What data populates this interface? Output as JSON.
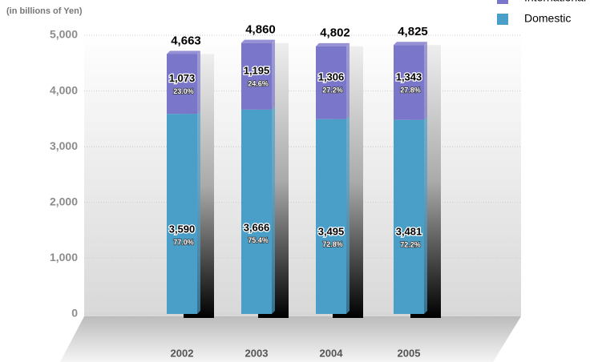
{
  "chart_data": {
    "type": "stacked-bar",
    "y_label": "(in billions of Yen)",
    "categories": [
      "2002",
      "2003",
      "2004",
      "2005"
    ],
    "series": [
      {
        "name": "Domestic",
        "color": "#4a9fc8",
        "values": [
          3590,
          3666,
          3495,
          3481
        ],
        "value_labels": [
          "3,590",
          "3,666",
          "3,495",
          "3,481"
        ],
        "shares": [
          "77.0%",
          "75.4%",
          "72.8%",
          "72.2%"
        ]
      },
      {
        "name": "International",
        "color": "#7a76c9",
        "values": [
          1073,
          1195,
          1306,
          1343
        ],
        "value_labels": [
          "1,073",
          "1,195",
          "1,306",
          "1,343"
        ],
        "shares": [
          "23.0%",
          "24.6%",
          "27.2%",
          "27.8%"
        ]
      }
    ],
    "totals": [
      4663,
      4860,
      4802,
      4825
    ],
    "total_labels": [
      "4,663",
      "4,860",
      "4,802",
      "4,825"
    ],
    "ylim": [
      0,
      5000
    ],
    "yticks": [
      0,
      {
        "value": 1000,
        "label": "1,000"
      },
      {
        "value": 2000,
        "label": "2,000"
      },
      {
        "value": 3000,
        "label": "3,000"
      },
      {
        "value": 4000,
        "label": "4,000"
      },
      {
        "value": 5000,
        "label": "5,000"
      }
    ],
    "grid": true
  }
}
